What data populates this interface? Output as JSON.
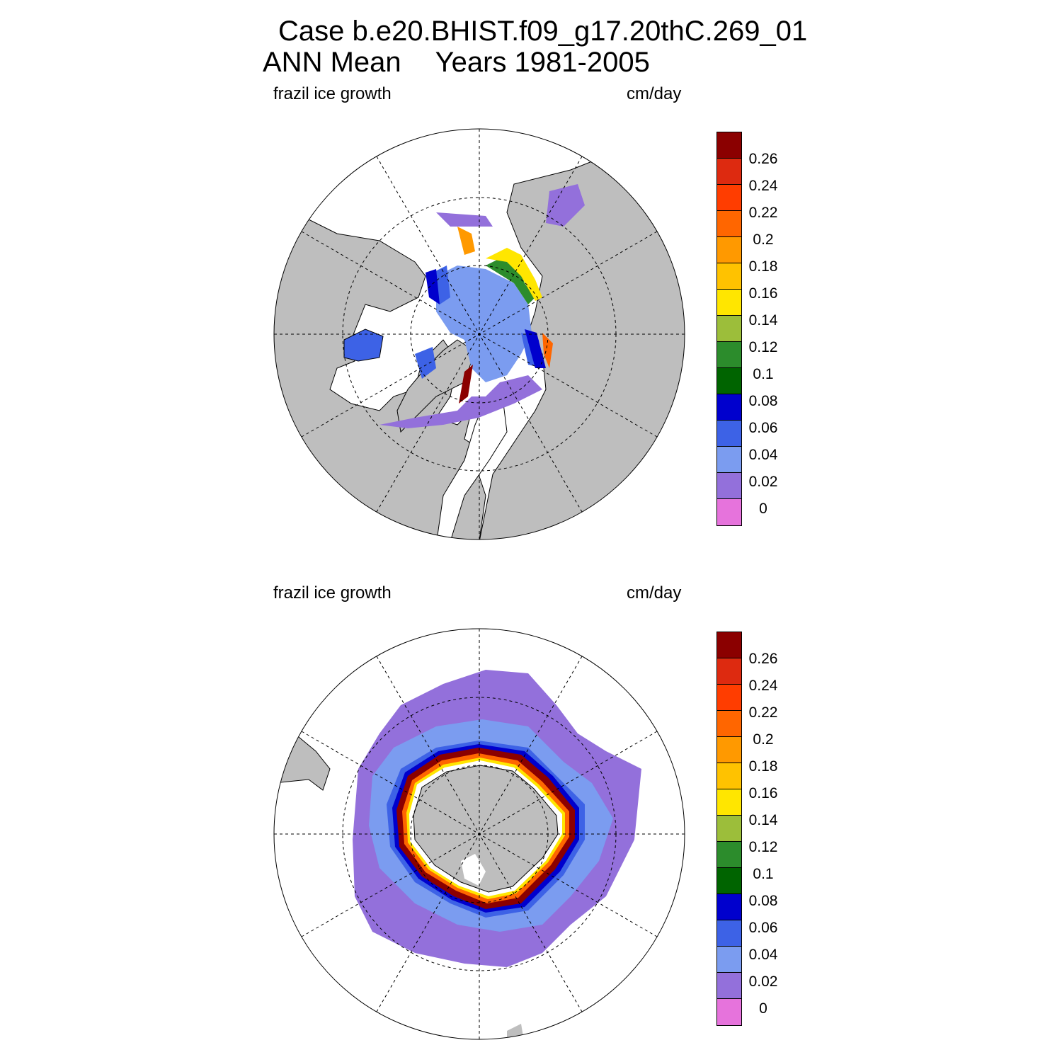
{
  "header": {
    "title_line1": "Case b.e20.BHIST.f09_g17.20thC.269_01",
    "title_line2a": "ANN Mean",
    "title_line2b": "Years 1981-2005"
  },
  "panels": [
    {
      "name": "north",
      "variable": "frazil ice growth",
      "units": "cm/day"
    },
    {
      "name": "south",
      "variable": "frazil ice growth",
      "units": "cm/day"
    }
  ],
  "colorbar": {
    "levels": [
      "0.26",
      "0.24",
      "0.22",
      "0.2",
      "0.18",
      "0.16",
      "0.14",
      "0.12",
      "0.1",
      "0.08",
      "0.06",
      "0.04",
      "0.02",
      "0"
    ],
    "colors": [
      "#8b0000",
      "#dd2a10",
      "#ff3d00",
      "#ff6600",
      "#ff9900",
      "#ffc200",
      "#ffe600",
      "#9cbe3a",
      "#2c8c2c",
      "#006400",
      "#0000cd",
      "#3d62e6",
      "#7b9cf0",
      "#9370db",
      "#e673dc"
    ]
  },
  "map_colors": {
    "land": "#bebebe",
    "ocean_missing": "#ffffff",
    "grid": "#000000"
  }
}
